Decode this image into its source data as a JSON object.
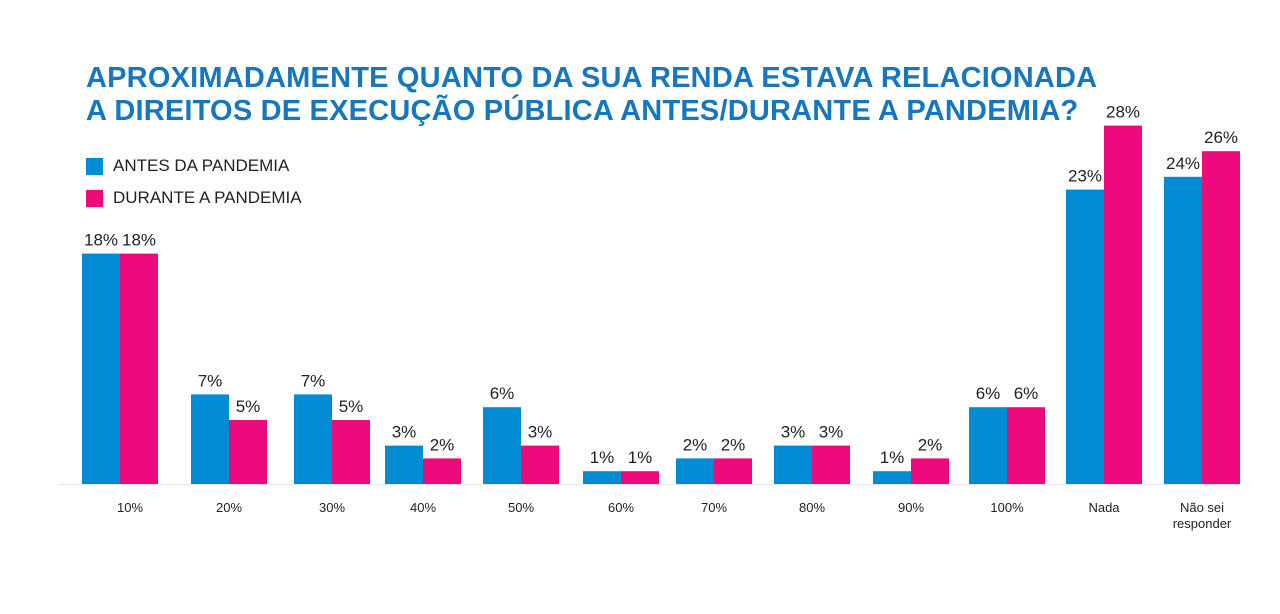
{
  "chart_data": {
    "type": "bar",
    "title_lines": [
      "APROXIMADAMENTE QUANTO DA SUA RENDA ESTAVA RELACIONADA",
      "A DIREITOS DE EXECUÇÃO PÚBLICA ANTES/DURANTE A PANDEMIA?"
    ],
    "categories": [
      "10%",
      "20%",
      "30%",
      "40%",
      "50%",
      "60%",
      "70%",
      "80%",
      "90%",
      "100%",
      "Nada",
      "Não sei responder"
    ],
    "series": [
      {
        "name": "ANTES DA PANDEMIA",
        "color": "#008bd2",
        "values": [
          18,
          7,
          7,
          3,
          6,
          1,
          2,
          3,
          1,
          6,
          23,
          24
        ]
      },
      {
        "name": "DURANTE A PANDEMIA",
        "color": "#ec0a7d",
        "values": [
          18,
          5,
          5,
          2,
          3,
          1,
          2,
          3,
          2,
          6,
          28,
          26
        ]
      }
    ],
    "value_suffix": "%",
    "ylim": [
      0,
      30
    ],
    "grid": false,
    "legend_position": "top-left"
  }
}
